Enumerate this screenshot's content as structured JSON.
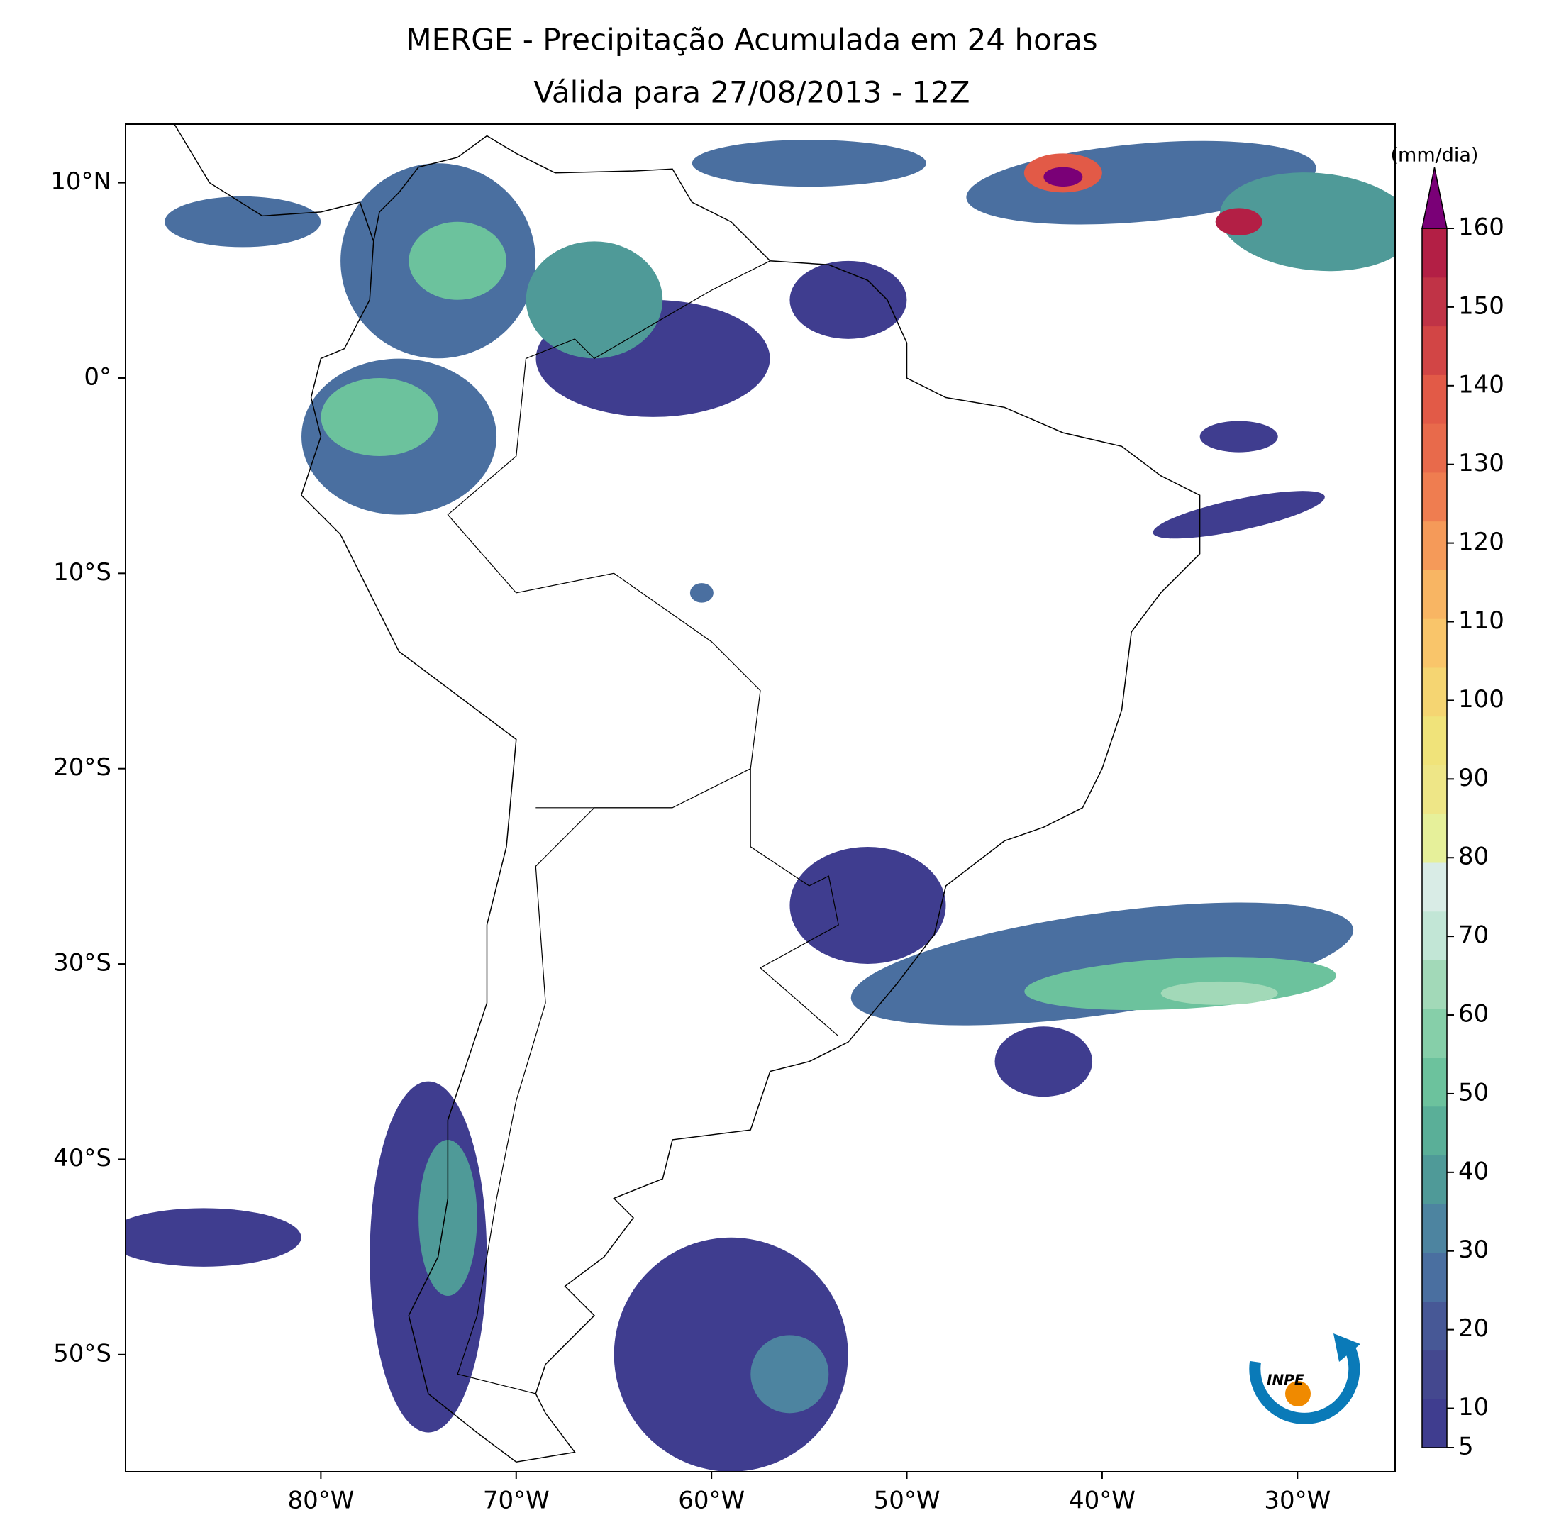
{
  "map": {
    "title": "MERGE - Precipitação Acumulada em 24 horas",
    "subtitle": "Válida para 27/08/2013 - 12Z",
    "lonlim": [
      -90,
      -25
    ],
    "latlim": [
      -56,
      13
    ],
    "xticks": [
      {
        "value": -80,
        "label": "80°W"
      },
      {
        "value": -70,
        "label": "70°W"
      },
      {
        "value": -60,
        "label": "60°W"
      },
      {
        "value": -50,
        "label": "50°W"
      },
      {
        "value": -40,
        "label": "40°W"
      },
      {
        "value": -30,
        "label": "30°W"
      }
    ],
    "yticks": [
      {
        "value": 10,
        "label": "10°N"
      },
      {
        "value": 0,
        "label": "0°"
      },
      {
        "value": -10,
        "label": "10°S"
      },
      {
        "value": -20,
        "label": "20°S"
      },
      {
        "value": -30,
        "label": "30°S"
      },
      {
        "value": -40,
        "label": "40°S"
      },
      {
        "value": -50,
        "label": "50°S"
      }
    ],
    "colorbar": {
      "label": "(mm/dia)",
      "lim": [
        5,
        160
      ],
      "ticks": [
        5,
        10,
        20,
        30,
        40,
        50,
        60,
        70,
        80,
        90,
        100,
        110,
        120,
        130,
        140,
        150,
        160
      ],
      "colors": [
        "#3f3d8f",
        "#44488f",
        "#475896",
        "#4a6fa0",
        "#4d84a0",
        "#4f9a98",
        "#5aaf98",
        "#6cc29d",
        "#86cfa9",
        "#a2d9b8",
        "#c2e6d6",
        "#d9ece6",
        "#e6f09a",
        "#eee687",
        "#f0e37a",
        "#f5d572",
        "#f9c56a",
        "#f8b563",
        "#f59a59",
        "#ef7d50",
        "#e86a4b",
        "#e25a47",
        "#d24545",
        "#c03346",
        "#b31f45"
      ],
      "extend_color": "#7a0077"
    },
    "logo": "INPE"
  }
}
